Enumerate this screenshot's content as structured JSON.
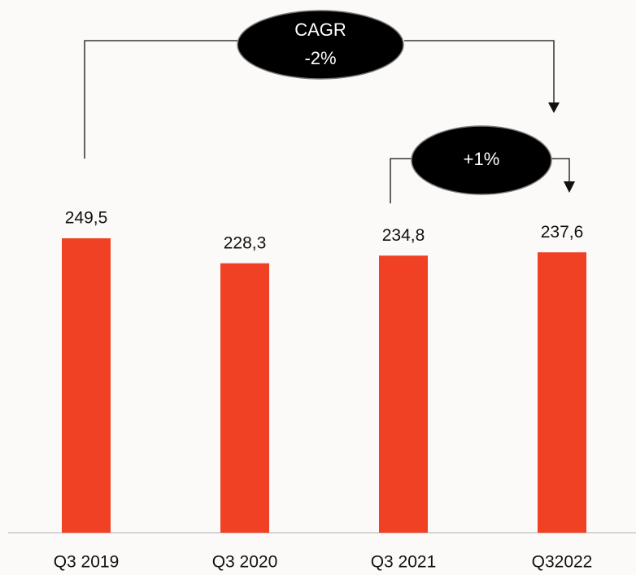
{
  "chart_data": {
    "type": "bar",
    "categories": [
      "Q3 2019",
      "Q3 2020",
      "Q3 2021",
      "Q32022"
    ],
    "values": [
      249.5,
      228.3,
      234.8,
      237.6
    ],
    "value_labels": [
      "249,5",
      "228,3",
      "234,8",
      "237,6"
    ],
    "color": "#f04124",
    "annotations": [
      "CAGR",
      "-2%",
      "+1%"
    ]
  }
}
